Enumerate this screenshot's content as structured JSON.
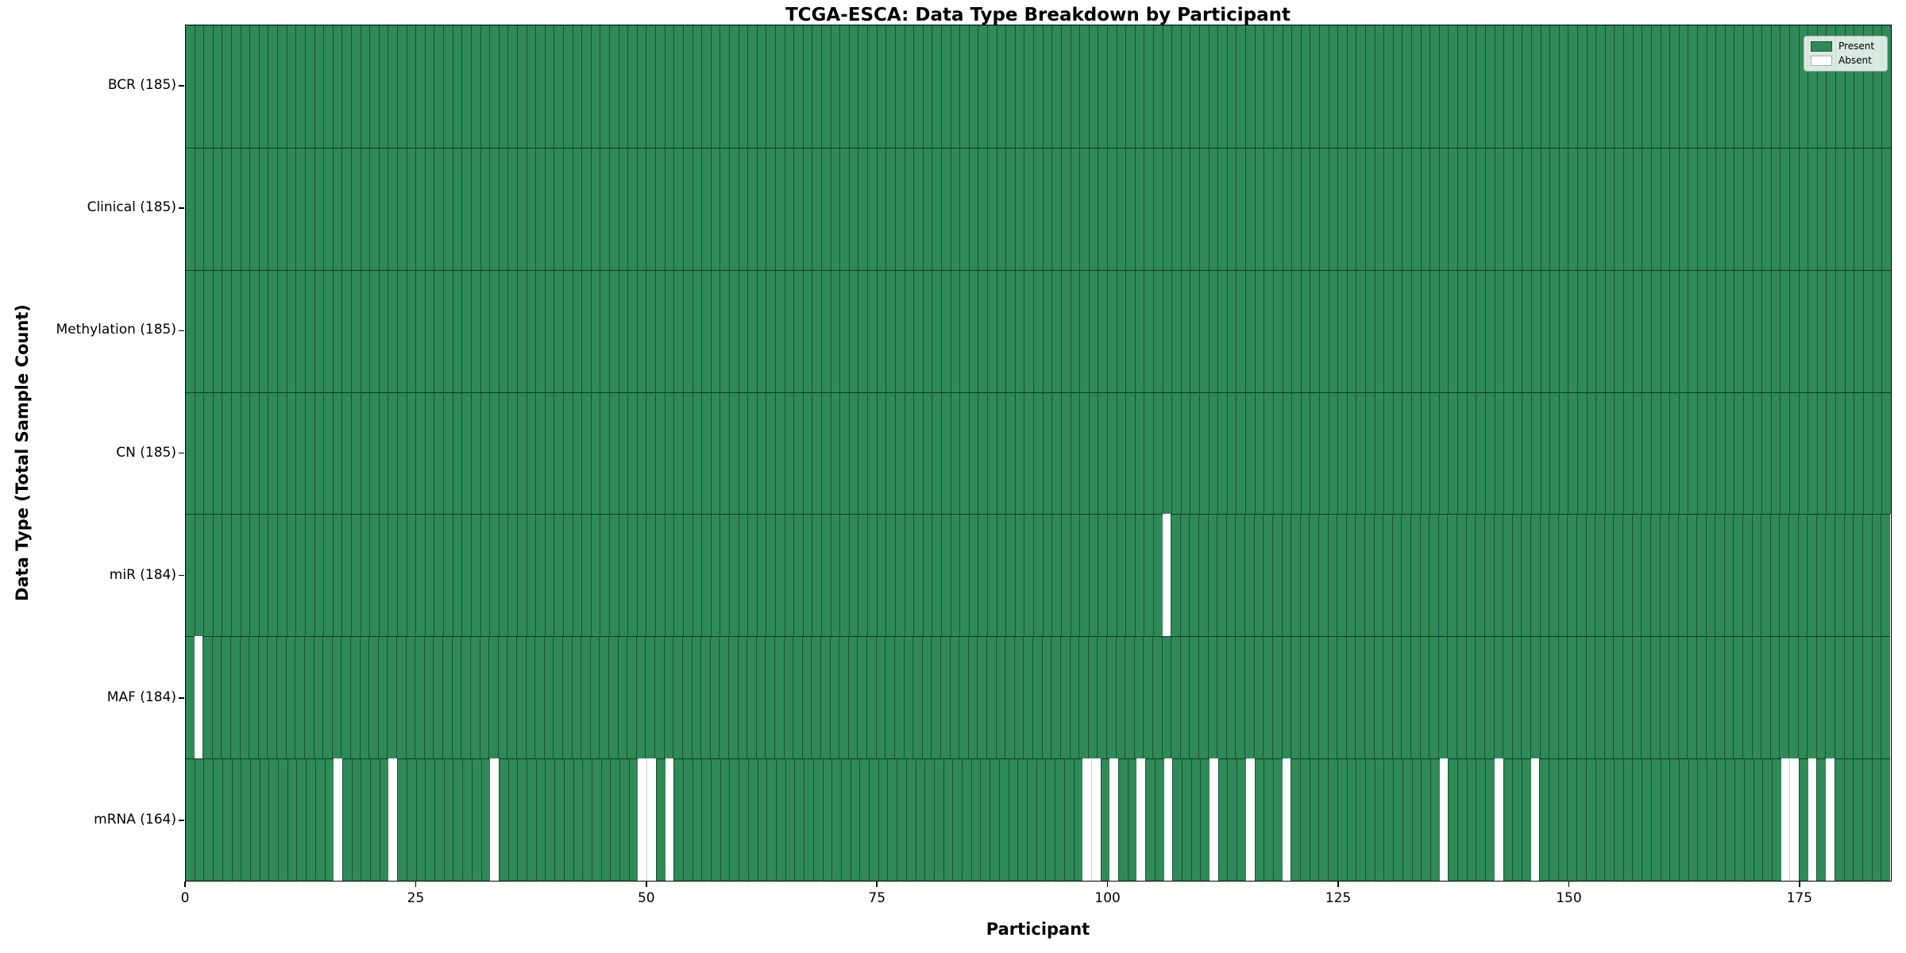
{
  "title": "TCGA-ESCA: Data Type Breakdown by Participant",
  "xlabel": "Participant",
  "ylabel": "Data Type (Total Sample Count)",
  "legend": {
    "present_label": "Present",
    "absent_label": "Absent"
  },
  "colors": {
    "present": "#2f8a57",
    "absent": "#ffffff",
    "legend_present_border": "#1c5434",
    "legend_absent_border": "#aaaaaa"
  },
  "chart_data": {
    "type": "heatmap",
    "title": "TCGA-ESCA: Data Type Breakdown by Participant",
    "xlabel": "Participant",
    "ylabel": "Data Type (Total Sample Count)",
    "legend_entries": [
      "Present",
      "Absent"
    ],
    "legend_position": "upper right",
    "grid": "vertical bar edges every participant, horizontal edges between rows",
    "n_participants": 185,
    "x_range": [
      0,
      185
    ],
    "x_ticks": [
      0,
      25,
      50,
      75,
      100,
      125,
      150,
      175
    ],
    "rows": [
      {
        "name": "BCR",
        "label": "BCR (185)",
        "present_count": 185,
        "absent_participants": []
      },
      {
        "name": "Clinical",
        "label": "Clinical (185)",
        "present_count": 185,
        "absent_participants": []
      },
      {
        "name": "Methylation",
        "label": "Methylation (185)",
        "present_count": 185,
        "absent_participants": []
      },
      {
        "name": "CN",
        "label": "CN (185)",
        "present_count": 185,
        "absent_participants": []
      },
      {
        "name": "miR",
        "label": "miR (184)",
        "present_count": 184,
        "absent_participants": [
          106
        ]
      },
      {
        "name": "MAF",
        "label": "MAF (184)",
        "present_count": 184,
        "absent_participants": [
          1
        ]
      },
      {
        "name": "mRNA",
        "label": "mRNA (164)",
        "present_count": 164,
        "absent_participants": [
          16,
          22,
          33,
          49,
          50,
          52,
          97,
          98,
          100,
          103,
          106,
          111,
          115,
          119,
          136,
          142,
          146,
          173,
          174,
          176,
          178
        ]
      }
    ]
  }
}
